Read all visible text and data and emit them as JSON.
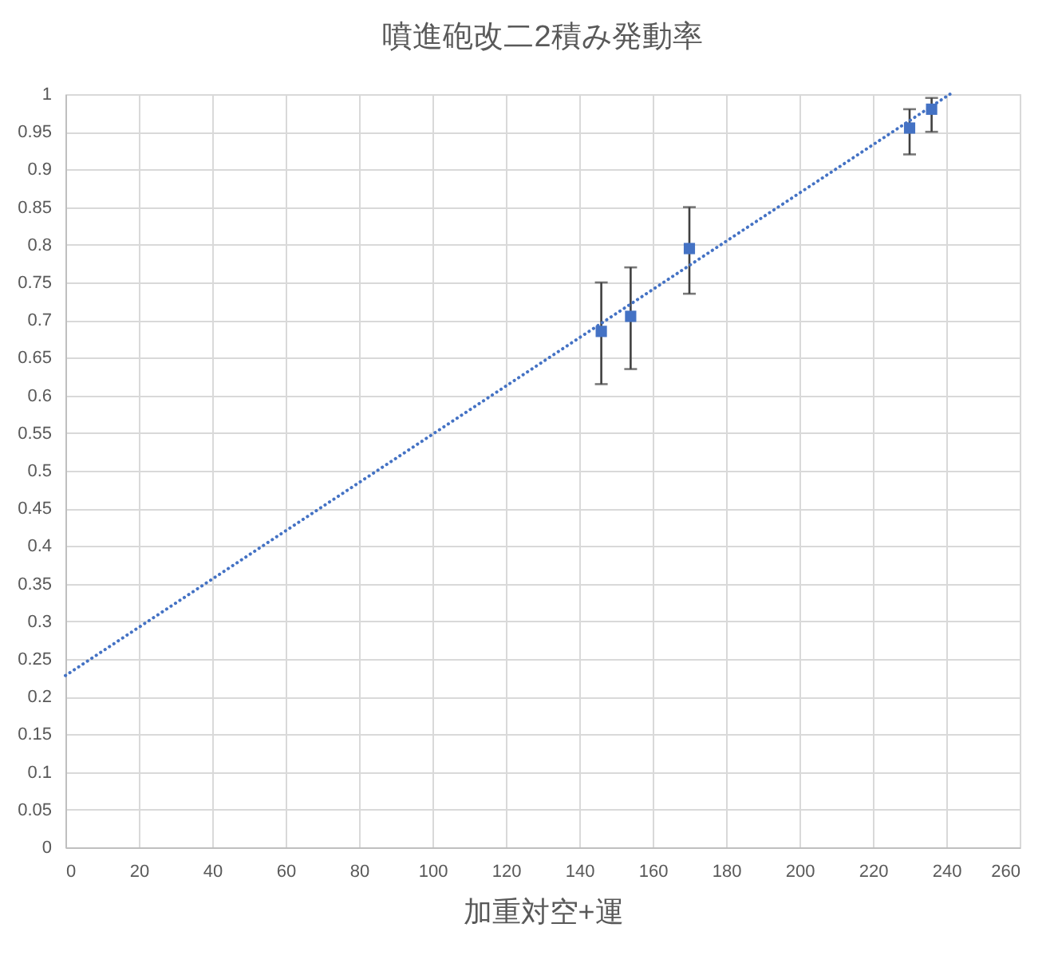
{
  "chart_data": {
    "type": "scatter",
    "title": "噴進砲改二2積み発動率",
    "xlabel": "加重対空+運",
    "xlim": [
      0,
      260
    ],
    "xticks": [
      0,
      20,
      40,
      60,
      80,
      100,
      120,
      140,
      160,
      180,
      200,
      220,
      240,
      260
    ],
    "ylim": [
      0,
      1
    ],
    "yticks": [
      0,
      0.05,
      0.1,
      0.15,
      0.2,
      0.25,
      0.3,
      0.35,
      0.4,
      0.45,
      0.5,
      0.55,
      0.6,
      0.65,
      0.7,
      0.75,
      0.8,
      0.85,
      0.9,
      0.95,
      1
    ],
    "grid": true,
    "marker": "square",
    "series": [
      {
        "color": "#4472c4",
        "x": [
          146,
          154,
          170,
          230,
          236
        ],
        "values": [
          0.685,
          0.705,
          0.795,
          0.955,
          0.98
        ],
        "errors": [
          [
            0.615,
            0.75
          ],
          [
            0.635,
            0.77
          ],
          [
            0.735,
            0.85
          ],
          [
            0.92,
            0.98
          ],
          [
            0.95,
            0.995
          ]
        ]
      },
      {
        "type": "line",
        "color": "#4472c4",
        "line_style": "dotted",
        "marker": "none",
        "x": [
          0,
          241
        ],
        "values": [
          0.228,
          1.0
        ]
      }
    ]
  }
}
